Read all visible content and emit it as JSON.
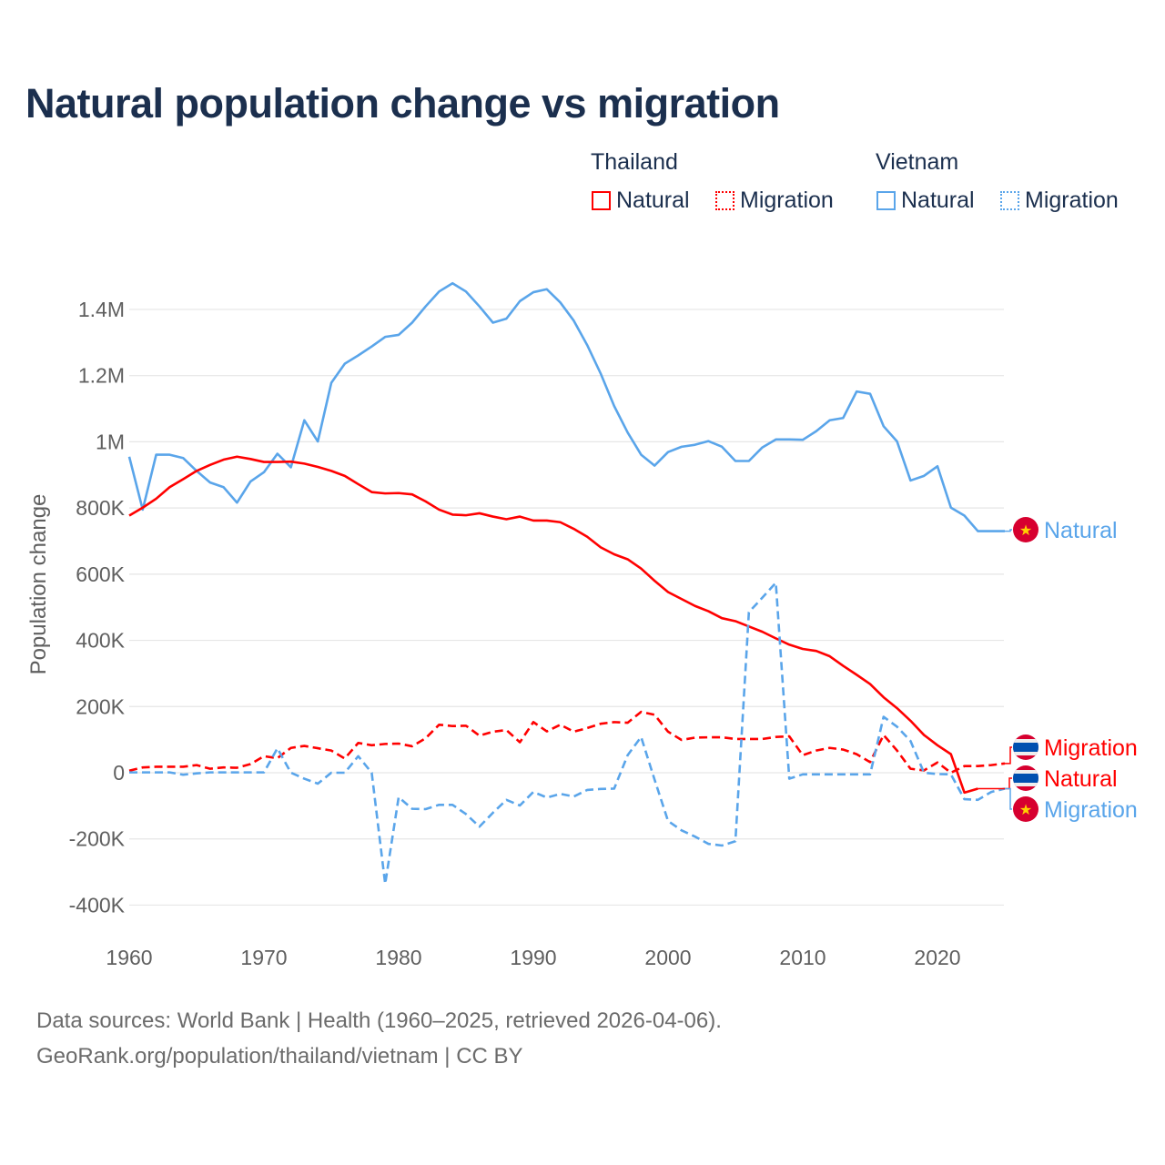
{
  "title": "Natural population change vs migration",
  "legend": {
    "groups": [
      {
        "country": "Thailand",
        "items": [
          {
            "label": "Natural",
            "style": "solid"
          },
          {
            "label": "Migration",
            "style": "dotted"
          }
        ]
      },
      {
        "country": "Vietnam",
        "items": [
          {
            "label": "Natural",
            "style": "solid"
          },
          {
            "label": "Migration",
            "style": "dotted"
          }
        ]
      }
    ]
  },
  "colors": {
    "thailand": "#ff0000",
    "vietnam": "#5aa5ea",
    "grid": "#e6e6e6",
    "title": "#1b2f4e",
    "vn_flag": "#d7002f",
    "vn_star": "#ffd100",
    "th_blue": "#0050b0"
  },
  "footer": {
    "line1": "Data sources: World Bank | Health (1960–2025, retrieved 2026-04-06).",
    "line2": "GeoRank.org/population/thailand/vietnam | CC BY"
  },
  "chart_data": {
    "type": "line",
    "title": "Natural population change vs migration",
    "xlabel": "",
    "ylabel": "Population change",
    "xlim": [
      1960,
      2025
    ],
    "ylim": [
      -400000,
      1400000
    ],
    "x_ticks": [
      1960,
      1970,
      1980,
      1990,
      2000,
      2010,
      2020
    ],
    "x_tick_labels": [
      "1960",
      "1970",
      "1980",
      "1990",
      "2000",
      "2010",
      "2020"
    ],
    "y_ticks": [
      -400000,
      -200000,
      0,
      200000,
      400000,
      600000,
      800000,
      1000000,
      1200000,
      1400000
    ],
    "y_tick_labels": [
      "-400K",
      "-200K",
      "0",
      "200K",
      "400K",
      "600K",
      "800K",
      "1M",
      "1.2M",
      "1.4M"
    ],
    "grid": true,
    "legend_position": "top-right",
    "series": [
      {
        "name": "Vietnam Natural",
        "end_label": "Natural",
        "country": "vietnam",
        "dash": false,
        "start_year": 1960,
        "values": [
          955,
          795,
          961,
          961,
          951,
          912,
          877,
          863,
          816,
          880,
          908,
          964,
          923,
          1065,
          1001,
          1178,
          1236,
          1261,
          1288,
          1317,
          1323,
          1360,
          1409,
          1454,
          1479,
          1454,
          1409,
          1360,
          1372,
          1425,
          1452,
          1461,
          1421,
          1366,
          1292,
          1206,
          1108,
          1028,
          961,
          928,
          969,
          985,
          991,
          1002,
          985,
          942,
          942,
          983,
          1007,
          1007,
          1006,
          1032,
          1065,
          1072,
          1152,
          1145,
          1047,
          1001,
          883,
          897,
          926,
          801,
          777,
          730,
          730,
          730
        ]
      },
      {
        "name": "Thailand Natural",
        "end_label": "Natural",
        "country": "thailand",
        "dash": false,
        "start_year": 1960,
        "values": [
          777,
          801,
          828,
          863,
          887,
          912,
          930,
          946,
          955,
          948,
          939,
          939,
          940,
          934,
          924,
          912,
          897,
          872,
          848,
          844,
          845,
          841,
          820,
          795,
          780,
          778,
          784,
          774,
          766,
          774,
          762,
          762,
          757,
          737,
          713,
          681,
          660,
          645,
          617,
          580,
          546,
          525,
          504,
          488,
          467,
          458,
          442,
          426,
          406,
          387,
          374,
          368,
          352,
          323,
          296,
          268,
          228,
          195,
          157,
          114,
          83,
          56,
          -60,
          -48
        ]
      },
      {
        "name": "Thailand Migration",
        "end_label": "Migration",
        "country": "thailand",
        "dash": true,
        "start_year": 1960,
        "values": [
          6,
          16,
          18,
          18,
          18,
          23,
          12,
          16,
          15,
          26,
          50,
          44,
          75,
          81,
          74,
          67,
          43,
          90,
          83,
          87,
          88,
          80,
          104,
          145,
          141,
          142,
          112,
          124,
          129,
          92,
          153,
          125,
          145,
          124,
          135,
          148,
          153,
          151,
          184,
          175,
          124,
          99,
          106,
          107,
          107,
          102,
          102,
          102,
          108,
          110,
          53,
          67,
          75,
          70,
          56,
          32,
          114,
          67,
          12,
          7,
          31,
          0,
          20,
          20,
          23,
          28
        ]
      },
      {
        "name": "Vietnam Migration",
        "end_label": "Migration",
        "country": "vietnam",
        "dash": true,
        "start_year": 1960,
        "values": [
          1,
          1,
          1,
          1,
          -6,
          -2,
          1,
          1,
          1,
          1,
          1,
          74,
          0,
          -18,
          -33,
          0,
          0,
          50,
          0,
          -336,
          -74,
          -109,
          -110,
          -97,
          -97,
          -125,
          -163,
          -121,
          -82,
          -99,
          -58,
          -75,
          -64,
          -72,
          -52,
          -49,
          -48,
          53,
          108,
          -21,
          -146,
          -174,
          -193,
          -215,
          -220,
          -207,
          485,
          529,
          574,
          -18,
          -5,
          -5,
          -5,
          -5,
          -5,
          -5,
          169,
          139,
          96,
          0,
          -4,
          -5,
          -80,
          -82,
          -58,
          -48
        ]
      }
    ],
    "value_unit": "thousands"
  }
}
